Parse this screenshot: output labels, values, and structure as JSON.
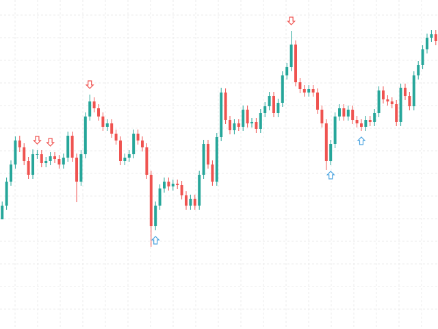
{
  "chart_data": {
    "type": "candlestick",
    "ylim": [
      0,
      480
    ],
    "grid": true,
    "up_color": "#26a69a",
    "down_color": "#ef5350",
    "signal_up_color": "#4aa3df",
    "signal_down_color": "#ef5350",
    "open": [
      160,
      180,
      215,
      240,
      275,
      265,
      245,
      225,
      255,
      255,
      242,
      245,
      252,
      248,
      240,
      250,
      282,
      250,
      215,
      255,
      310,
      332,
      322,
      310,
      295,
      300,
      285,
      275,
      245,
      250,
      255,
      285,
      275,
      265,
      225,
      150,
      180,
      205,
      215,
      208,
      212,
      210,
      195,
      180,
      190,
      180,
      225,
      270,
      240,
      215,
      280,
      345,
      305,
      290,
      300,
      295,
      320,
      300,
      302,
      292,
      315,
      325,
      340,
      315,
      330,
      370,
      382,
      415,
      360,
      350,
      345,
      350,
      345,
      320,
      300,
      245,
      270,
      310,
      322,
      310,
      320,
      305,
      300,
      295,
      305,
      302,
      315,
      348,
      335,
      332,
      328,
      302,
      352,
      340,
      325,
      370,
      385,
      408,
      425,
      430
    ],
    "high": [
      186,
      221,
      246,
      281,
      282,
      271,
      251,
      262,
      261,
      261,
      251,
      258,
      258,
      254,
      256,
      288,
      288,
      256,
      261,
      316,
      342,
      338,
      328,
      316,
      306,
      306,
      291,
      281,
      256,
      261,
      291,
      291,
      281,
      271,
      231,
      186,
      211,
      221,
      221,
      218,
      218,
      216,
      201,
      196,
      196,
      231,
      276,
      276,
      246,
      286,
      352,
      351,
      311,
      306,
      306,
      326,
      326,
      308,
      308,
      321,
      331,
      346,
      346,
      336,
      376,
      388,
      435,
      421,
      366,
      356,
      356,
      356,
      351,
      326,
      306,
      276,
      316,
      328,
      328,
      326,
      326,
      311,
      306,
      311,
      311,
      321,
      354,
      354,
      341,
      338,
      334,
      358,
      358,
      346,
      376,
      391,
      414,
      431,
      436,
      436
    ],
    "low": [
      164,
      174,
      209,
      234,
      258,
      239,
      219,
      219,
      248,
      236,
      236,
      239,
      242,
      234,
      234,
      244,
      244,
      185,
      209,
      249,
      304,
      316,
      304,
      289,
      289,
      279,
      269,
      239,
      239,
      244,
      249,
      269,
      259,
      219,
      120,
      144,
      174,
      199,
      202,
      202,
      204,
      189,
      174,
      174,
      174,
      174,
      219,
      234,
      209,
      209,
      274,
      299,
      284,
      284,
      289,
      289,
      294,
      294,
      286,
      286,
      309,
      319,
      309,
      309,
      324,
      364,
      376,
      354,
      344,
      339,
      339,
      339,
      314,
      294,
      232,
      239,
      264,
      304,
      304,
      304,
      299,
      294,
      289,
      289,
      296,
      296,
      309,
      329,
      326,
      322,
      296,
      296,
      334,
      319,
      319,
      364,
      379,
      402,
      419,
      414
    ],
    "close": [
      180,
      215,
      240,
      275,
      265,
      245,
      225,
      255,
      255,
      242,
      245,
      252,
      248,
      240,
      250,
      282,
      250,
      215,
      255,
      310,
      332,
      322,
      310,
      295,
      300,
      285,
      275,
      245,
      250,
      255,
      285,
      275,
      265,
      225,
      150,
      180,
      205,
      215,
      208,
      212,
      210,
      195,
      180,
      190,
      180,
      225,
      270,
      240,
      215,
      280,
      345,
      305,
      290,
      300,
      295,
      320,
      300,
      302,
      292,
      315,
      325,
      340,
      315,
      330,
      370,
      382,
      415,
      360,
      350,
      345,
      350,
      345,
      320,
      300,
      245,
      270,
      310,
      322,
      310,
      320,
      305,
      300,
      295,
      305,
      302,
      315,
      348,
      335,
      332,
      328,
      302,
      352,
      340,
      325,
      370,
      385,
      408,
      425,
      430,
      420
    ],
    "signals": [
      {
        "index": 8,
        "direction": "down"
      },
      {
        "index": 11,
        "direction": "down"
      },
      {
        "index": 20,
        "direction": "down"
      },
      {
        "index": 35,
        "direction": "up"
      },
      {
        "index": 66,
        "direction": "down"
      },
      {
        "index": 75,
        "direction": "up"
      },
      {
        "index": 82,
        "direction": "up"
      }
    ]
  }
}
